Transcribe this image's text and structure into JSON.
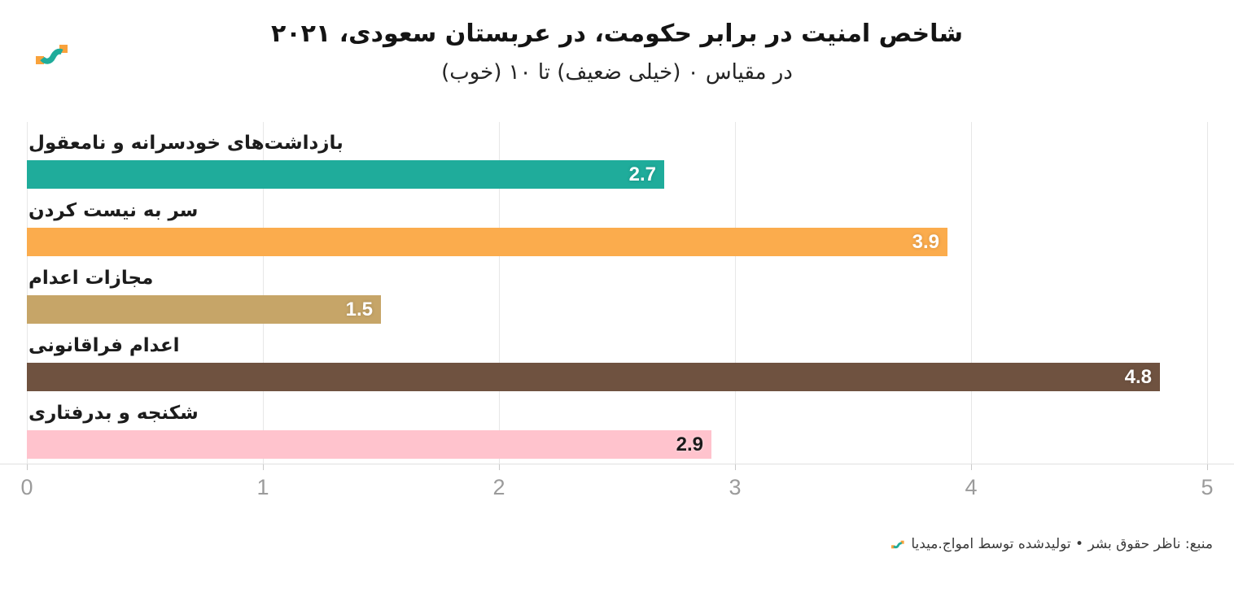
{
  "chart_data": {
    "type": "bar",
    "orientation": "horizontal",
    "title": "شاخص امنیت در برابر حکومت، در عربستان سعودی، ۲۰۲۱",
    "subtitle": "در مقیاس ۰ (خیلی ضعیف) تا ۱۰ (خوب)",
    "categories": [
      "بازداشت‌های خودسرانه و نامعقول",
      "سر به نیست کردن",
      "مجازات اعدام",
      "اعدام فراقانونی",
      "شکنجه و بدرفتاری"
    ],
    "values": [
      2.7,
      3.9,
      1.5,
      4.8,
      2.9
    ],
    "bar_colors": [
      "#1FAC9B",
      "#FBAC4D",
      "#C6A568",
      "#6F5240",
      "#FFC3CD"
    ],
    "value_label_colors": [
      "#ffffff",
      "#ffffff",
      "#ffffff",
      "#ffffff",
      "#1a1a1a"
    ],
    "xlim": [
      0,
      5
    ],
    "x_ticks": [
      "0",
      "1",
      "2",
      "3",
      "4",
      "5"
    ],
    "grid": "vertical-only",
    "legend": "none"
  },
  "footer": {
    "source_text": "منبع: ناظر حقوق بشر • تولیدشده توسط امواج.میدیا"
  },
  "logo": {
    "name": "amwaj-media-logo",
    "orange": "#F9A23B",
    "teal": "#1FAC9B"
  }
}
